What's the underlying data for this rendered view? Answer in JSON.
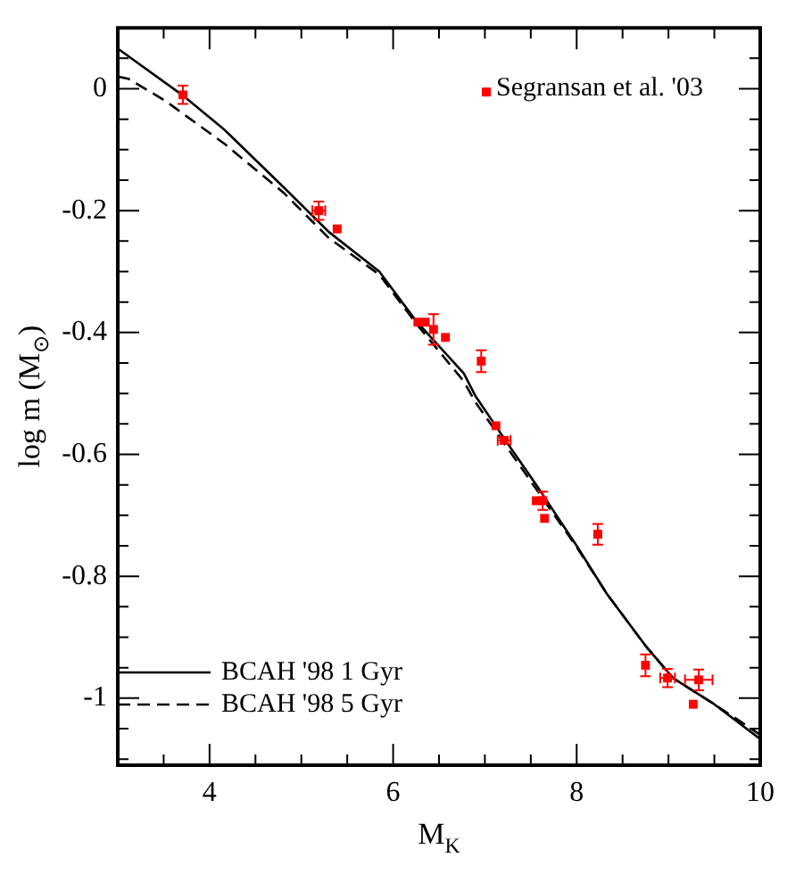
{
  "chart_data": {
    "type": "scatter",
    "xlabel": "M$_{K}$",
    "ylabel": "log m (M$_{⊙}$)",
    "xlim": [
      3,
      10
    ],
    "ylim": [
      -1.11,
      0.1
    ],
    "xticks": [
      {
        "value": 3.5,
        "label": null
      },
      4,
      {
        "value": 4.5,
        "label": null
      },
      {
        "value": 5,
        "label": null
      },
      {
        "value": 5.5,
        "label": null
      },
      6,
      {
        "value": 6.5,
        "label": null
      },
      {
        "value": 7,
        "label": null
      },
      {
        "value": 7.5,
        "label": null
      },
      8,
      {
        "value": 8.5,
        "label": null
      },
      {
        "value": 9,
        "label": null
      },
      {
        "value": 9.5,
        "label": null
      },
      10
    ],
    "yticks": [
      {
        "value": -1.1,
        "label": null
      },
      {
        "value": -1.05,
        "label": null
      },
      -1,
      {
        "value": -0.95,
        "label": null
      },
      {
        "value": -0.9,
        "label": null
      },
      {
        "value": -0.85,
        "label": null
      },
      -0.8,
      {
        "value": -0.75,
        "label": null
      },
      {
        "value": -0.7,
        "label": null
      },
      {
        "value": -0.65,
        "label": null
      },
      -0.6,
      {
        "value": -0.55,
        "label": null
      },
      {
        "value": -0.5,
        "label": null
      },
      {
        "value": -0.45,
        "label": null
      },
      -0.4,
      {
        "value": -0.35,
        "label": null
      },
      {
        "value": -0.3,
        "label": null
      },
      {
        "value": -0.25,
        "label": null
      },
      -0.2,
      {
        "value": -0.15,
        "label": null
      },
      {
        "value": -0.1,
        "label": null
      },
      {
        "value": -0.05,
        "label": null
      },
      0,
      {
        "value": 0.05,
        "label": null
      }
    ],
    "legend": "bottom left",
    "series": [
      {
        "name": "Segransan et al. '03",
        "type": "scatter",
        "marker": "square",
        "color": "#ff0000",
        "x": [
          3.71,
          5.19,
          5.39,
          6.27,
          6.35,
          6.44,
          6.57,
          6.96,
          7.12,
          7.21,
          7.56,
          7.63,
          7.65,
          8.23,
          8.75,
          8.99,
          9.27,
          9.33
        ],
        "values": [
          -0.01,
          -0.2,
          -0.23,
          -0.383,
          -0.383,
          -0.395,
          -0.408,
          -0.447,
          -0.553,
          -0.577,
          -0.676,
          -0.676,
          -0.705,
          -0.731,
          -0.946,
          -0.967,
          -1.01,
          -0.97
        ],
        "errors": [
          0.015,
          0.015,
          null,
          null,
          null,
          0.025,
          null,
          0.018,
          null,
          null,
          null,
          0.015,
          null,
          0.017,
          0.018,
          0.015,
          null,
          0.017
        ],
        "xerrors": [
          null,
          0.07,
          null,
          null,
          null,
          null,
          null,
          null,
          null,
          0.07,
          null,
          null,
          null,
          null,
          null,
          0.08,
          null,
          0.15
        ]
      },
      {
        "name": "BCAH '98 1 Gyr",
        "type": "line",
        "marker": "none",
        "line_style": "solid",
        "color": "#000000",
        "x": [
          3,
          3.7,
          4.16,
          4.81,
          5.3,
          5.85,
          6.25,
          6.77,
          6.9,
          7.22,
          7.55,
          8.0,
          8.33,
          8.75,
          9.05,
          9.5,
          10
        ],
        "values": [
          0.066,
          -0.01,
          -0.067,
          -0.162,
          -0.235,
          -0.3,
          -0.381,
          -0.467,
          -0.505,
          -0.576,
          -0.648,
          -0.75,
          -0.829,
          -0.914,
          -0.967,
          -1.01,
          -1.067
        ]
      },
      {
        "name": "BCAH '98 5 Gyr",
        "type": "line",
        "marker": "none",
        "line_style": "dashed",
        "color": "#000000",
        "x": [
          3,
          3.12,
          3.51,
          4.16,
          4.81,
          5.3,
          5.85,
          6.25,
          6.77,
          6.9,
          7.55,
          8.0,
          8.33,
          8.75,
          9.05,
          9.5,
          10
        ],
        "values": [
          0.02,
          0.016,
          -0.019,
          -0.09,
          -0.171,
          -0.245,
          -0.305,
          -0.385,
          -0.48,
          -0.515,
          -0.655,
          -0.752,
          -0.829,
          -0.914,
          -0.967,
          -1.01,
          -1.06
        ]
      }
    ]
  }
}
